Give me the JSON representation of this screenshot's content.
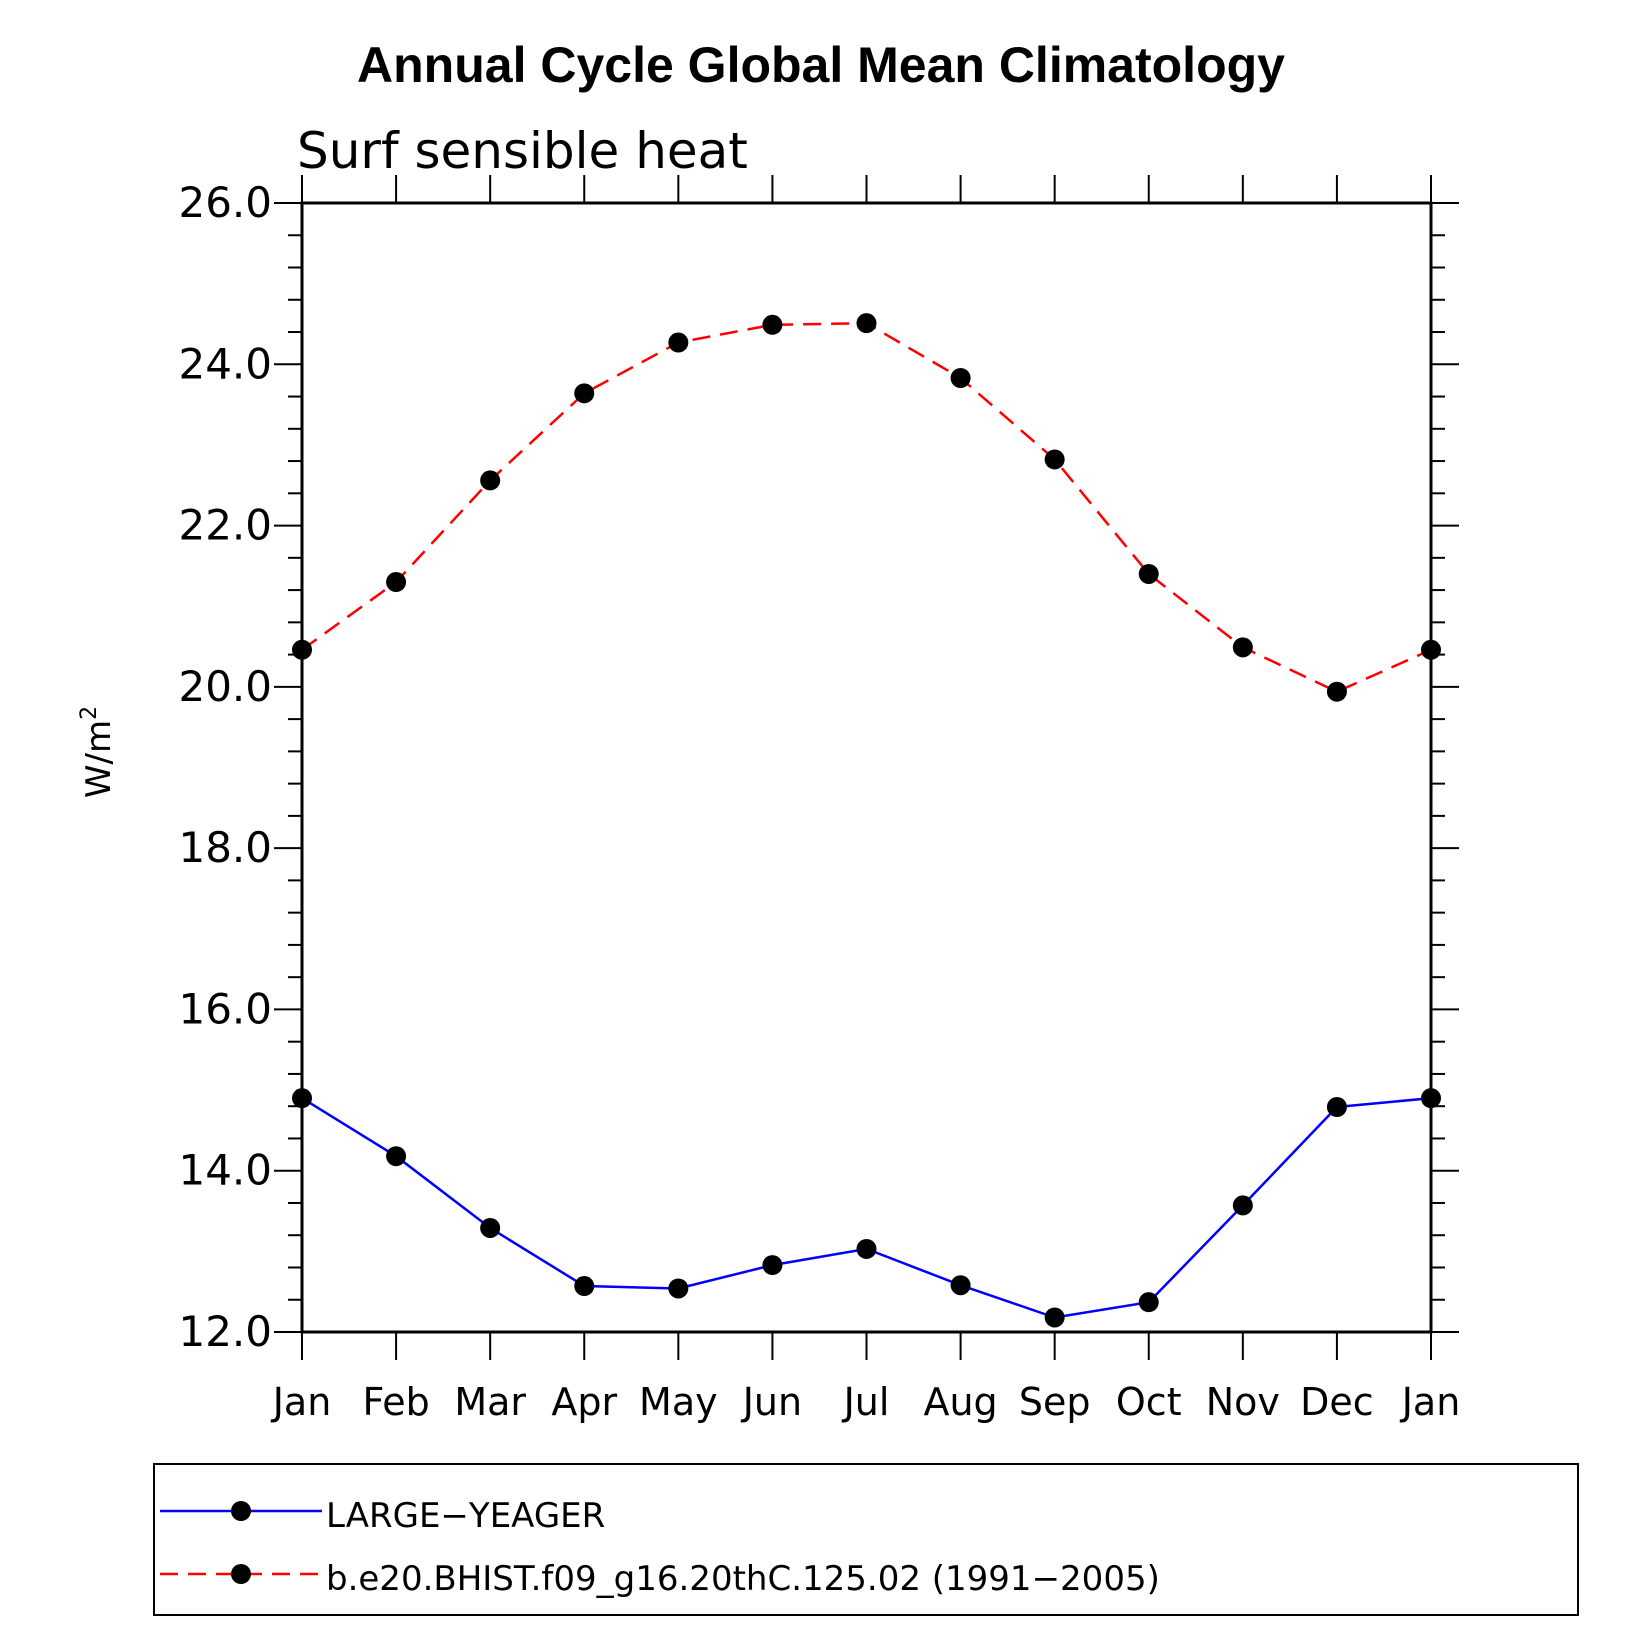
{
  "chart_data": {
    "type": "line",
    "title": "Annual Cycle Global Mean Climatology",
    "subtitle": "Surf sensible heat",
    "ylabel": "W/m²",
    "ylabel_base": "W/m",
    "ylabel_sup": "2",
    "ylim": [
      12.0,
      26.0
    ],
    "yticks": [
      "12.0",
      "14.0",
      "16.0",
      "18.0",
      "20.0",
      "22.0",
      "24.0",
      "26.0"
    ],
    "categories": [
      "Jan",
      "Feb",
      "Mar",
      "Apr",
      "May",
      "Jun",
      "Jul",
      "Aug",
      "Sep",
      "Oct",
      "Nov",
      "Dec",
      "Jan"
    ],
    "series": [
      {
        "name": "LARGE−YEAGER",
        "color": "#0000ff",
        "style": "solid",
        "values": [
          14.9,
          14.18,
          13.29,
          12.57,
          12.54,
          12.83,
          13.03,
          12.58,
          12.18,
          12.37,
          13.57,
          14.79,
          14.9
        ]
      },
      {
        "name": "b.e20.BHIST.f09_g16.20thC.125.02 (1991−2005)",
        "color": "#ff0000",
        "style": "dashed",
        "values": [
          20.46,
          21.3,
          22.56,
          23.64,
          24.27,
          24.49,
          24.51,
          23.83,
          22.82,
          21.4,
          20.49,
          19.94,
          20.46
        ]
      }
    ],
    "legend_position": "bottom",
    "marker_color": "#000000"
  }
}
